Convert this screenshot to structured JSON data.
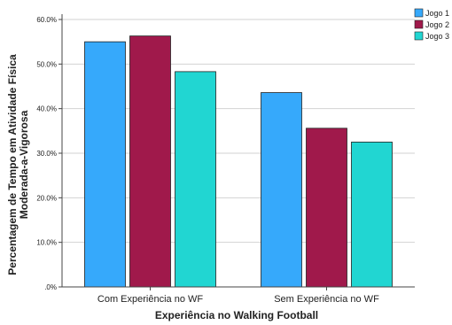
{
  "chart_data": {
    "type": "bar",
    "categories": [
      "Com Experiência no WF",
      "Sem Experiência no WF"
    ],
    "series": [
      {
        "name": "Jogo 1",
        "color": "#36a9fb",
        "values": [
          55.0,
          43.6
        ]
      },
      {
        "name": "Jogo 2",
        "color": "#a0194b",
        "values": [
          56.3,
          35.6
        ]
      },
      {
        "name": "Jogo 3",
        "color": "#21d6d2",
        "values": [
          48.3,
          32.5
        ]
      }
    ],
    "yticks": [
      ".0%",
      "10.0%",
      "20.0%",
      "30.0%",
      "40.0%",
      "50.0%",
      "60.0%"
    ],
    "ylim": [
      0,
      60
    ],
    "xlabel": "Experiência no Walking Football",
    "ylabel_lines": [
      "Percentagem de Tempo em Atividade Física",
      "Moderada-a-Vigorosa"
    ],
    "grid": true,
    "legend_position": "top-right"
  }
}
